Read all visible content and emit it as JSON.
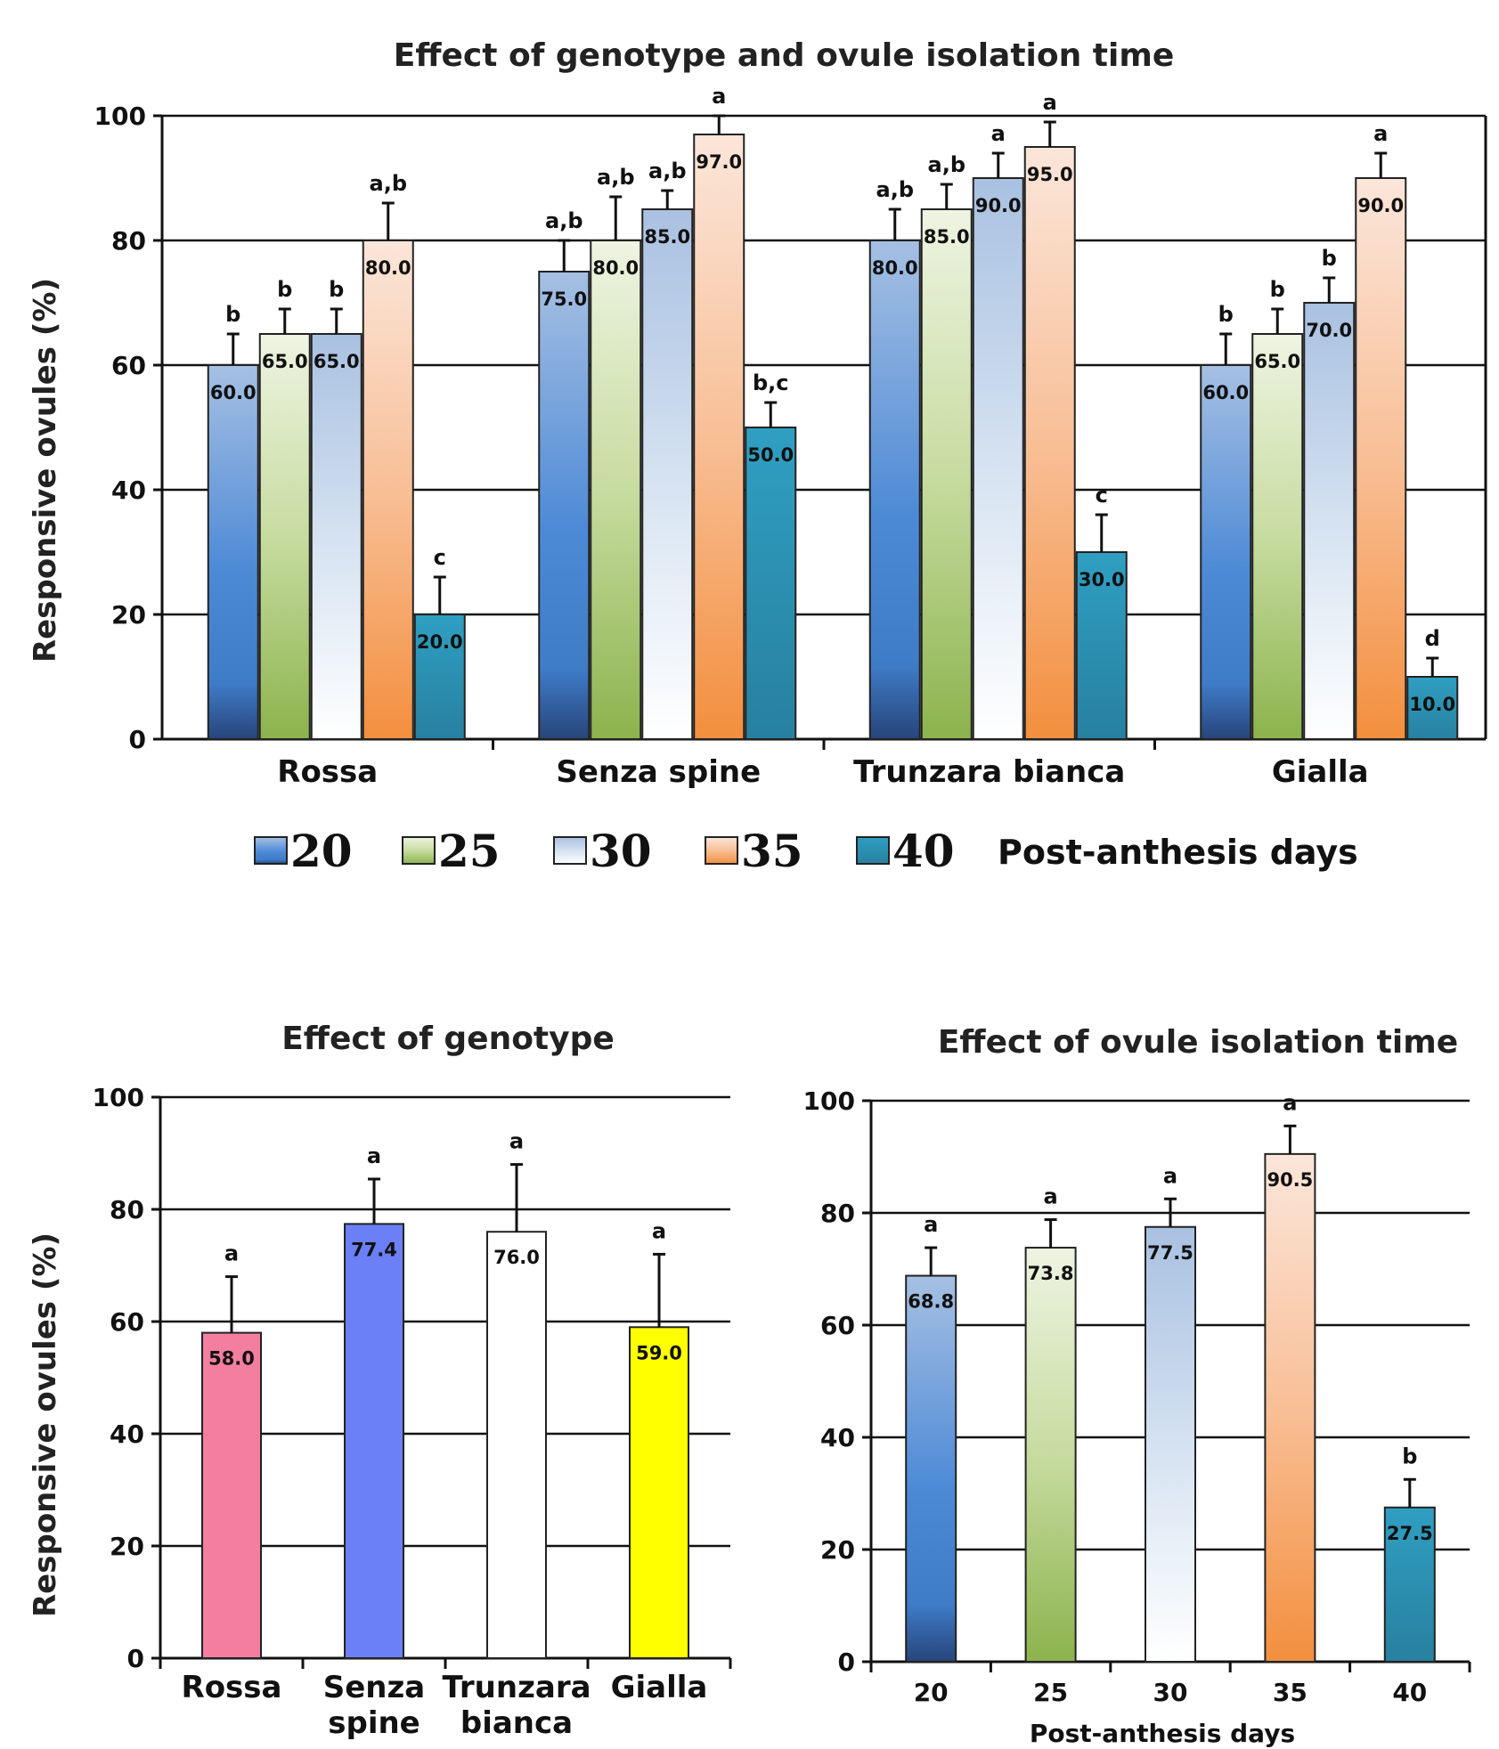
{
  "chart_data": [
    {
      "id": "top",
      "type": "bar",
      "title": "Effect of genotype and ovule isolation time",
      "ylabel": "Responsive ovules (%)",
      "xlabel": "",
      "ylim": [
        0,
        100
      ],
      "yticks": [
        "0",
        "20",
        "40",
        "60",
        "80",
        "100"
      ],
      "categories": [
        "Rossa",
        "Senza spine",
        "Trunzara bianca",
        "Gialla"
      ],
      "legend_title": "Post-anthesis days",
      "series": [
        {
          "name": "20",
          "color": "#4a86d0",
          "values": [
            60,
            75,
            80,
            60
          ],
          "errors": [
            5,
            5,
            5,
            5
          ],
          "value_labels": [
            "60.0",
            "75.0",
            "80.0",
            "60.0"
          ],
          "letters": [
            "b",
            "a,b",
            "a,b",
            "b"
          ]
        },
        {
          "name": "25",
          "color": "#9bbf5a",
          "values": [
            65,
            80,
            85,
            65
          ],
          "errors": [
            4,
            7,
            4,
            4
          ],
          "value_labels": [
            "65.0",
            "80.0",
            "85.0",
            "65.0"
          ],
          "letters": [
            "b",
            "a,b",
            "a,b",
            "b"
          ]
        },
        {
          "name": "30",
          "color": "#b9cde6",
          "values": [
            65,
            85,
            90,
            70
          ],
          "errors": [
            4,
            3,
            4,
            4
          ],
          "value_labels": [
            "65.0",
            "85.0",
            "90.0",
            "70.0"
          ],
          "letters": [
            "b",
            "a,b",
            "a",
            "b"
          ]
        },
        {
          "name": "35",
          "color": "#f5a05c",
          "values": [
            80,
            97,
            95,
            90
          ],
          "errors": [
            6,
            3,
            4,
            4
          ],
          "value_labels": [
            "80.0",
            "97.0",
            "95.0",
            "90.0"
          ],
          "letters": [
            "a,b",
            "a",
            "a",
            "a"
          ]
        },
        {
          "name": "40",
          "color": "#2f9ab9",
          "values": [
            20,
            50,
            30,
            10
          ],
          "errors": [
            6,
            4,
            6,
            3
          ],
          "value_labels": [
            "20.0",
            "50.0",
            "30.0",
            "10.0"
          ],
          "letters": [
            "c",
            "b,c",
            "c",
            "d"
          ]
        }
      ]
    },
    {
      "id": "bottom-left",
      "type": "bar",
      "title": "Effect of genotype",
      "ylabel": "Responsive ovules (%)",
      "xlabel": "",
      "ylim": [
        0,
        100
      ],
      "yticks": [
        "0",
        "20",
        "40",
        "60",
        "80",
        "100"
      ],
      "categories": [
        "Rossa",
        "Senza spine",
        "Trunzara bianca",
        "Gialla"
      ],
      "category_lines": [
        [
          "Rossa"
        ],
        [
          "Senza",
          "spine"
        ],
        [
          "Trunzara",
          "bianca"
        ],
        [
          "Gialla"
        ]
      ],
      "values": [
        58,
        77.4,
        76,
        59
      ],
      "errors": [
        10,
        8,
        12,
        13
      ],
      "value_labels": [
        "58.0",
        "77.4",
        "76.0",
        "59.0"
      ],
      "letters": [
        "a",
        "a",
        "a",
        "a"
      ],
      "colors": [
        "#f47ea0",
        "#6b7ff7",
        "#ffffff",
        "#ffff00"
      ]
    },
    {
      "id": "bottom-right",
      "type": "bar",
      "title": "Effect of ovule isolation time",
      "ylabel": "",
      "xlabel": "Post-anthesis days",
      "ylim": [
        0,
        100
      ],
      "yticks": [
        "0",
        "20",
        "40",
        "60",
        "80",
        "100"
      ],
      "categories": [
        "20",
        "25",
        "30",
        "35",
        "40"
      ],
      "values": [
        68.8,
        73.8,
        77.5,
        90.5,
        27.5
      ],
      "errors": [
        5,
        5,
        5,
        5,
        5
      ],
      "value_labels": [
        "68.8",
        "73.8",
        "77.5",
        "90.5",
        "27.5"
      ],
      "letters": [
        "a",
        "a",
        "a",
        "a",
        "b"
      ],
      "colors": [
        "#4a86d0",
        "#9bbf5a",
        "#b9cde6",
        "#f5a05c",
        "#2f9ab9"
      ]
    }
  ]
}
